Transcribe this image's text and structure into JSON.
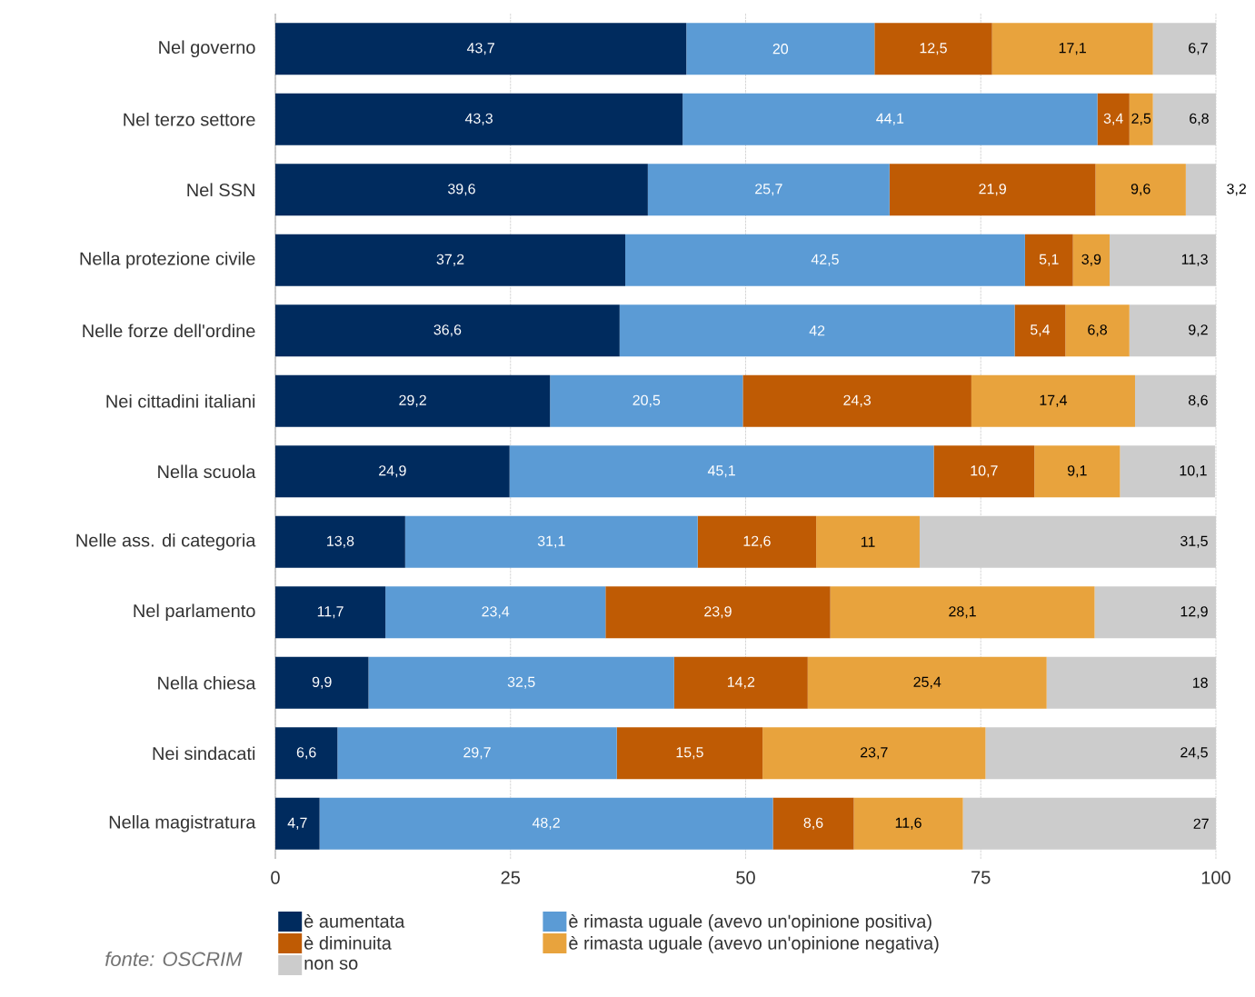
{
  "chart_data": {
    "type": "bar",
    "orientation": "horizontal",
    "stacked": true,
    "categories": [
      "Nel governo",
      "Nel terzo settore",
      "Nel SSN",
      "Nella protezione civile",
      "Nelle forze dell'ordine",
      "Nei cittadini italiani",
      "Nella scuola",
      "Nelle ass. di categoria",
      "Nel parlamento",
      "Nella chiesa",
      "Nei sindacati",
      "Nella magistratura"
    ],
    "series": [
      {
        "name": "è aumentata",
        "color": "#002b5e",
        "values": [
          43.7,
          43.3,
          39.6,
          37.2,
          36.6,
          29.2,
          24.9,
          13.8,
          11.7,
          9.9,
          6.6,
          4.7
        ],
        "value_labels": [
          "43,7",
          "43,3",
          "39,6",
          "37,2",
          "36,6",
          "29,2",
          "24,9",
          "13,8",
          "11,7",
          "9,9",
          "6,6",
          "4,7"
        ]
      },
      {
        "name": "è rimasta uguale (avevo un'opinione positiva)",
        "color": "#5b9bd5",
        "values": [
          20,
          44.1,
          25.7,
          42.5,
          42,
          20.5,
          45.1,
          31.1,
          23.4,
          32.5,
          29.7,
          48.2
        ],
        "value_labels": [
          "20",
          "44,1",
          "25,7",
          "42,5",
          "42",
          "20,5",
          "45,1",
          "31,1",
          "23,4",
          "32,5",
          "29,7",
          "48,2"
        ]
      },
      {
        "name": "è diminuita",
        "color": "#bf5b04",
        "values": [
          12.5,
          3.4,
          21.9,
          5.1,
          5.4,
          24.3,
          10.7,
          12.6,
          23.9,
          14.2,
          15.5,
          8.6
        ],
        "value_labels": [
          "12,5",
          "3,4",
          "21,9",
          "5,1",
          "5,4",
          "24,3",
          "10,7",
          "12,6",
          "23,9",
          "14,2",
          "15,5",
          "8,6"
        ]
      },
      {
        "name": "è rimasta uguale (avevo un'opinione negativa)",
        "color": "#e8a33d",
        "values": [
          17.1,
          2.5,
          9.6,
          3.9,
          6.8,
          17.4,
          9.1,
          11,
          28.1,
          25.4,
          23.7,
          11.6
        ],
        "value_labels": [
          "17,1",
          "2,5",
          "9,6",
          "3,9",
          "6,8",
          "17,4",
          "9,1",
          "11",
          "28,1",
          "25,4",
          "23,7",
          "11,6"
        ]
      },
      {
        "name": "non so",
        "color": "#cccccc",
        "values": [
          6.7,
          6.8,
          3.2,
          11.3,
          9.2,
          8.6,
          10.1,
          31.5,
          12.9,
          18,
          24.5,
          27
        ],
        "value_labels": [
          "6,7",
          "6,8",
          "3,2",
          "11,3",
          "9,2",
          "8,6",
          "10,1",
          "31,5",
          "12,9",
          "18",
          "24,5",
          "27"
        ]
      }
    ],
    "xlim": [
      0,
      100
    ],
    "xticks": [
      0,
      25,
      50,
      75,
      100
    ],
    "grid": "x",
    "legend": "bottom",
    "annotations": [
      "fonte: OSCRIM"
    ]
  }
}
